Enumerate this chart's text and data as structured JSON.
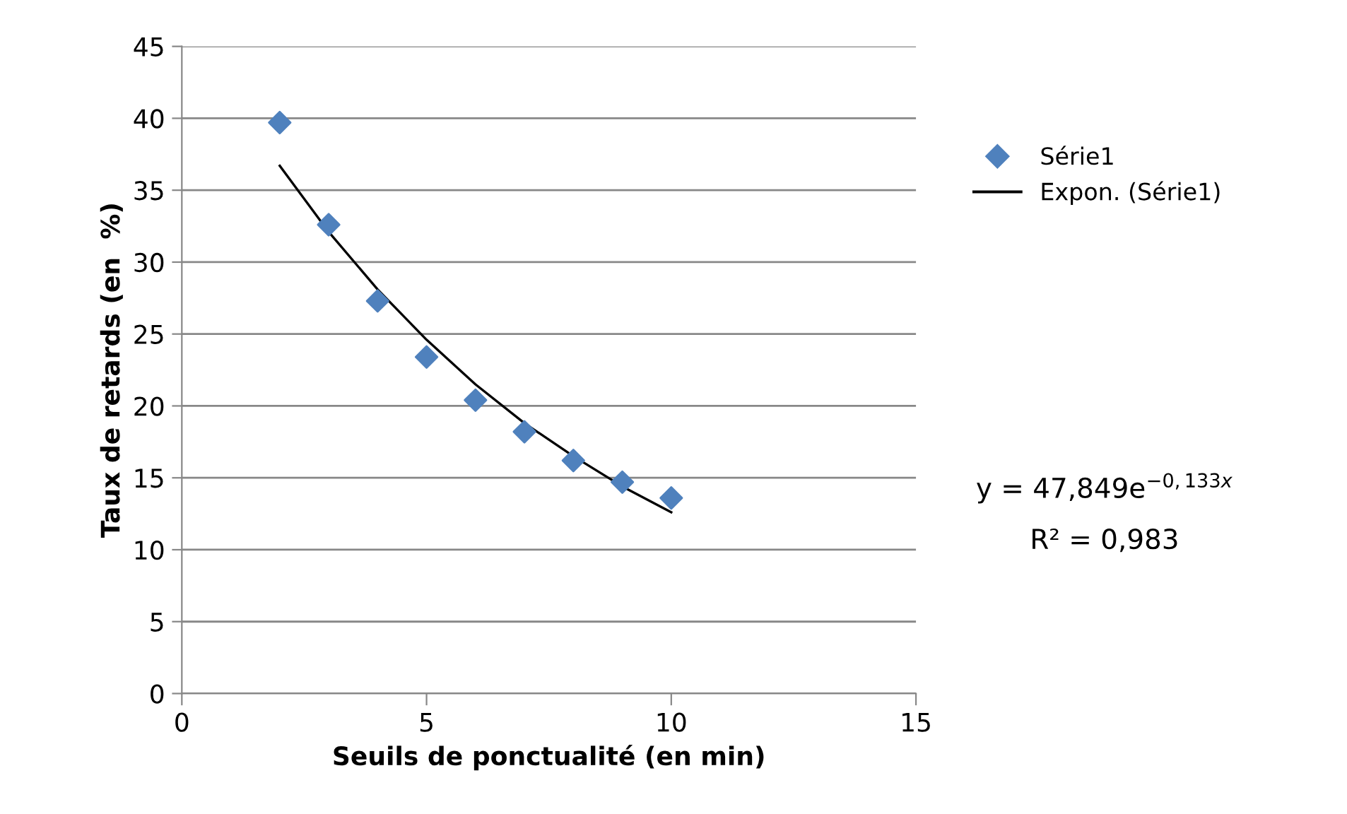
{
  "chart_data": {
    "type": "scatter",
    "xlabel": "Seuils de ponctualité (en min)",
    "ylabel": "Taux de retards (en  %)",
    "x": [
      2,
      3,
      4,
      5,
      6,
      7,
      8,
      9,
      10
    ],
    "series": [
      {
        "name": "Série1",
        "color": "#4f81bd",
        "marker": "diamond",
        "values": [
          39.7,
          32.6,
          27.3,
          23.4,
          20.4,
          18.2,
          16.2,
          14.7,
          13.6
        ]
      },
      {
        "name": "Expon. (Série1)",
        "type": "line",
        "color": "#000000",
        "line_style": "solid",
        "x": [
          2,
          3,
          4,
          5,
          6,
          7,
          8,
          9,
          10
        ],
        "values": [
          36.7,
          32.1,
          28.1,
          24.6,
          21.5,
          18.8,
          16.5,
          14.4,
          12.6
        ]
      }
    ],
    "annotations": [
      "y = 47,849e$^{−0,133x}$",
      "R² = 0,983"
    ],
    "xlim": [
      0,
      15
    ],
    "xticks": [
      0,
      5,
      10,
      15
    ],
    "ylim": [
      0,
      45
    ],
    "yticks": [
      0,
      5,
      10,
      15,
      20,
      25,
      30,
      35,
      40,
      45
    ],
    "grid": "y",
    "legend": "right"
  }
}
